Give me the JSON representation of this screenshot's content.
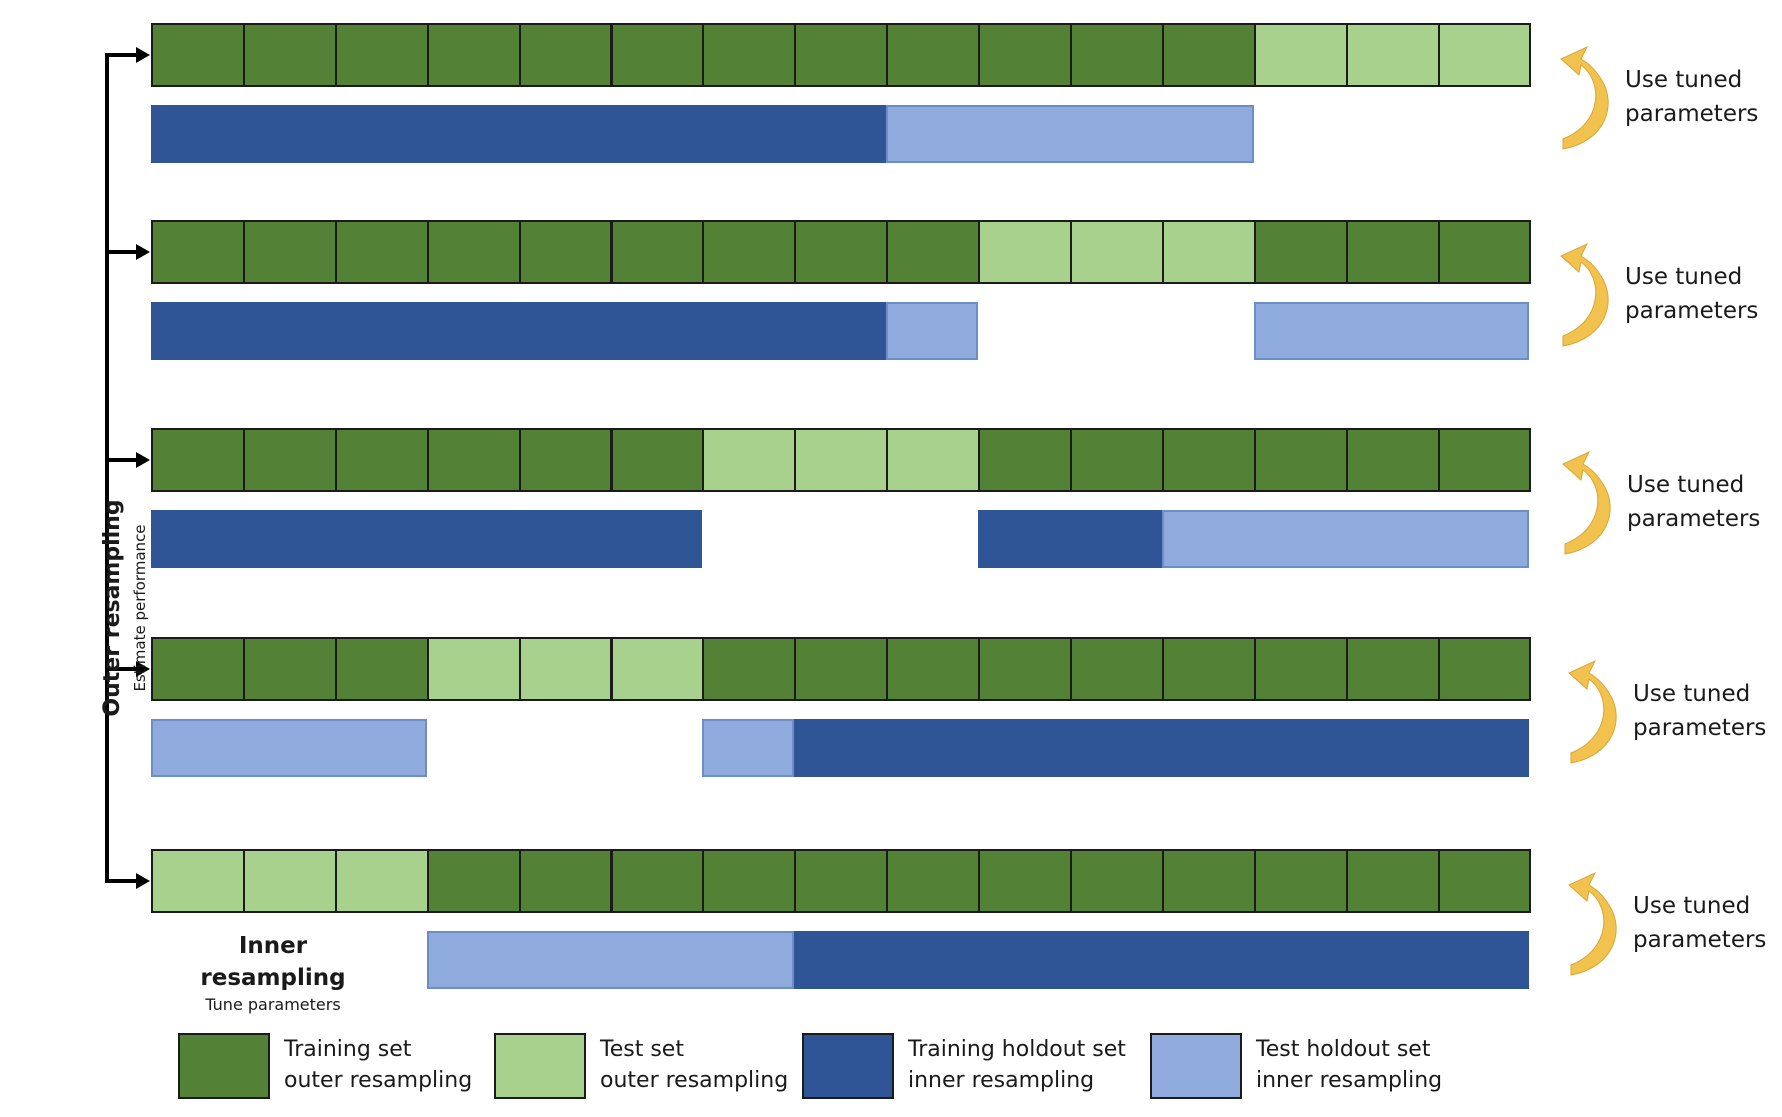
{
  "colors": {
    "training_outer": "#538135",
    "test_outer": "#a9d18e",
    "training_holdout_inner": "#2f5597",
    "test_holdout_inner": "#8faadc",
    "arrow_gold": "#f2c24e"
  },
  "outer_resampling": {
    "title": "Outer resampling",
    "subtitle": "Estimate performance"
  },
  "inner_resampling": {
    "title": "Inner resampling",
    "subtitle": "Tune parameters"
  },
  "folds": [
    {
      "cells": [
        "train",
        "train",
        "train",
        "train",
        "train",
        "train",
        "train",
        "train",
        "train",
        "train",
        "train",
        "train",
        "test",
        "test",
        "test"
      ],
      "inner_bars": [
        {
          "kind": "hold-train",
          "from": 0,
          "to": 8
        },
        {
          "kind": "hold-test",
          "from": 8,
          "to": 12
        }
      ],
      "tuned_line1": "Use tuned",
      "tuned_line2": "parameters"
    },
    {
      "cells": [
        "train",
        "train",
        "train",
        "train",
        "train",
        "train",
        "train",
        "train",
        "train",
        "test",
        "test",
        "test",
        "train",
        "train",
        "train"
      ],
      "inner_bars": [
        {
          "kind": "hold-train",
          "from": 0,
          "to": 8
        },
        {
          "kind": "hold-test",
          "from": 8,
          "to": 9
        },
        {
          "kind": "hold-test",
          "from": 12,
          "to": 15
        }
      ],
      "tuned_line1": "Use tuned",
      "tuned_line2": "parameters"
    },
    {
      "cells": [
        "train",
        "train",
        "train",
        "train",
        "train",
        "train",
        "test",
        "test",
        "test",
        "train",
        "train",
        "train",
        "train",
        "train",
        "train"
      ],
      "inner_bars": [
        {
          "kind": "hold-train",
          "from": 0,
          "to": 6
        },
        {
          "kind": "hold-train",
          "from": 9,
          "to": 11
        },
        {
          "kind": "hold-test",
          "from": 11,
          "to": 15
        }
      ],
      "tuned_line1": "Use tuned",
      "tuned_line2": "parameters"
    },
    {
      "cells": [
        "train",
        "train",
        "train",
        "test",
        "test",
        "test",
        "train",
        "train",
        "train",
        "train",
        "train",
        "train",
        "train",
        "train",
        "train"
      ],
      "inner_bars": [
        {
          "kind": "hold-test",
          "from": 0,
          "to": 3
        },
        {
          "kind": "hold-test",
          "from": 6,
          "to": 7
        },
        {
          "kind": "hold-train",
          "from": 7,
          "to": 15
        }
      ],
      "tuned_line1": "Use tuned",
      "tuned_line2": "parameters"
    },
    {
      "cells": [
        "test",
        "test",
        "test",
        "train",
        "train",
        "train",
        "train",
        "train",
        "train",
        "train",
        "train",
        "train",
        "train",
        "train",
        "train"
      ],
      "inner_bars": [
        {
          "kind": "hold-test",
          "from": 3,
          "to": 7
        },
        {
          "kind": "hold-train",
          "from": 7,
          "to": 15
        }
      ],
      "tuned_line1": "Use tuned",
      "tuned_line2": "parameters"
    }
  ],
  "legend": [
    {
      "kind": "train",
      "line1": "Training set",
      "line2": "outer resampling"
    },
    {
      "kind": "test",
      "line1": "Test set",
      "line2": "outer resampling"
    },
    {
      "kind": "hold-train",
      "line1": "Training holdout set",
      "line2": "inner resampling"
    },
    {
      "kind": "hold-test",
      "line1": "Test holdout set",
      "line2": "inner resampling"
    }
  ]
}
